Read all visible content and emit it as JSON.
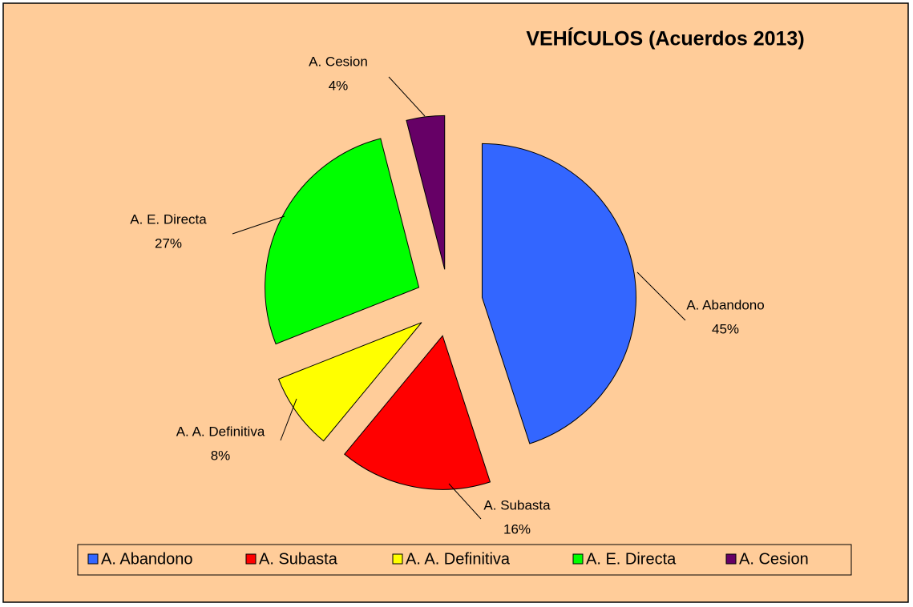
{
  "chart_data": {
    "type": "pie",
    "title": "VEHÍCULOS (Acuerdos 2013)",
    "categories": [
      "A. Abandono",
      "A. Subasta",
      "A. A. Definitiva",
      "A. E. Directa",
      "A. Cesion"
    ],
    "values": [
      45,
      16,
      8,
      27,
      4
    ],
    "value_labels": [
      "45%",
      "16%",
      "8%",
      "27%",
      "4%"
    ],
    "colors": [
      "#3366ff",
      "#ff0000",
      "#ffff00",
      "#00ff00",
      "#660066"
    ],
    "exploded": true,
    "legend": "bottom"
  }
}
